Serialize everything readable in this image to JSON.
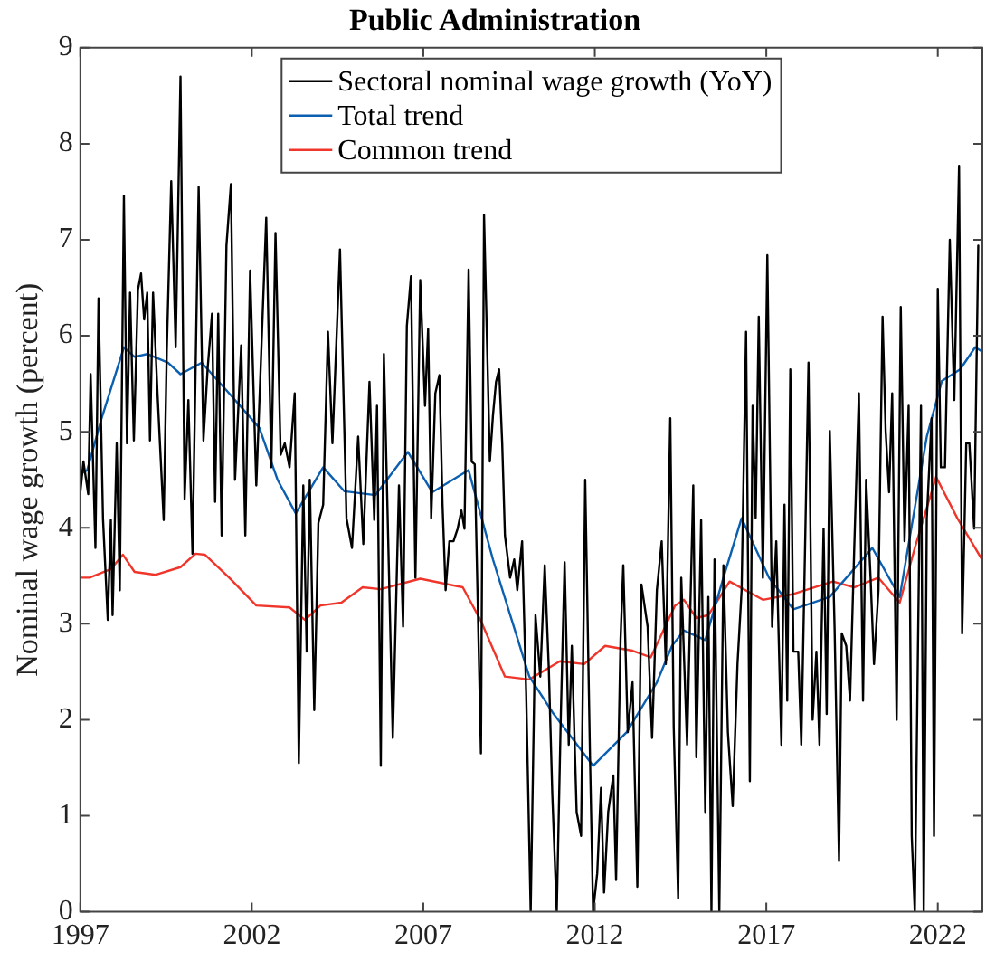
{
  "chart_data": {
    "type": "line",
    "title": "Public Administration",
    "ylabel": "Nominal wage growth (percent)",
    "xlim": [
      1997,
      2023.3
    ],
    "xticks": [
      1997,
      2002,
      2007,
      2012,
      2017,
      2022
    ],
    "ylim": [
      0,
      9
    ],
    "yticks": [
      0,
      1,
      2,
      3,
      4,
      5,
      6,
      7,
      8,
      9
    ],
    "grid": false,
    "legend": "top",
    "marker": "none",
    "line_style": "solid",
    "series": [
      {
        "name": "Sectoral nominal wage growth (YoY)",
        "color": "#000000",
        "x": [
          1997.0,
          1997.09,
          1997.23,
          1997.3,
          1997.44,
          1997.53,
          1997.66,
          1997.8,
          1997.89,
          1997.94,
          1998.06,
          1998.15,
          1998.27,
          1998.36,
          1998.45,
          1998.56,
          1998.68,
          1998.77,
          1998.86,
          1998.95,
          1999.03,
          1999.12,
          1999.25,
          1999.43,
          1999.52,
          1999.65,
          1999.78,
          1999.92,
          2000.04,
          2000.15,
          2000.27,
          2000.45,
          2000.59,
          2000.71,
          2000.84,
          2000.93,
          2001.02,
          2001.12,
          2001.26,
          2001.39,
          2001.51,
          2001.69,
          2001.81,
          2001.95,
          2002.13,
          2002.42,
          2002.57,
          2002.69,
          2002.84,
          2002.96,
          2003.1,
          2003.25,
          2003.37,
          2003.5,
          2003.6,
          2003.69,
          2003.82,
          2003.94,
          2004.08,
          2004.22,
          2004.35,
          2004.57,
          2004.76,
          2004.92,
          2005.1,
          2005.25,
          2005.43,
          2005.57,
          2005.65,
          2005.76,
          2005.85,
          2006.11,
          2006.29,
          2006.41,
          2006.52,
          2006.64,
          2006.77,
          2006.91,
          2007.05,
          2007.14,
          2007.23,
          2007.35,
          2007.47,
          2007.56,
          2007.65,
          2007.76,
          2007.88,
          2008.0,
          2008.11,
          2008.2,
          2008.32,
          2008.41,
          2008.5,
          2008.68,
          2008.77,
          2008.94,
          2009.03,
          2009.12,
          2009.21,
          2009.3,
          2009.38,
          2009.53,
          2009.65,
          2009.74,
          2009.88,
          2010.0,
          2010.13,
          2010.27,
          2010.41,
          2010.54,
          2010.66,
          2010.76,
          2010.89,
          2011.01,
          2011.12,
          2011.24,
          2011.33,
          2011.47,
          2011.6,
          2011.72,
          2011.86,
          2011.95,
          2012.07,
          2012.18,
          2012.27,
          2012.39,
          2012.54,
          2012.62,
          2012.75,
          2012.83,
          2012.96,
          2013.1,
          2013.24,
          2013.36,
          2013.54,
          2013.67,
          2013.81,
          2013.95,
          2014.07,
          2014.2,
          2014.3,
          2014.43,
          2014.52,
          2014.69,
          2014.87,
          2014.96,
          2015.1,
          2015.22,
          2015.31,
          2015.4,
          2015.49,
          2015.63,
          2015.75,
          2015.88,
          2016.02,
          2016.16,
          2016.28,
          2016.41,
          2016.52,
          2016.6,
          2016.69,
          2016.78,
          2016.9,
          2017.03,
          2017.17,
          2017.29,
          2017.44,
          2017.53,
          2017.61,
          2017.7,
          2017.79,
          2017.93,
          2018.02,
          2018.14,
          2018.23,
          2018.35,
          2018.46,
          2018.55,
          2018.67,
          2018.76,
          2018.85,
          2018.99,
          2019.12,
          2019.2,
          2019.33,
          2019.44,
          2019.56,
          2019.7,
          2019.82,
          2019.91,
          2020.04,
          2020.14,
          2020.27,
          2020.39,
          2020.48,
          2020.58,
          2020.67,
          2020.8,
          2020.92,
          2021.03,
          2021.15,
          2021.24,
          2021.33,
          2021.42,
          2021.51,
          2021.59,
          2021.68,
          2021.82,
          2021.89,
          2022.0,
          2022.09,
          2022.21,
          2022.35,
          2022.48,
          2022.62,
          2022.71,
          2022.83,
          2022.92,
          2023.06,
          2023.18
        ],
        "values": [
          4.37,
          4.69,
          4.35,
          5.6,
          3.79,
          6.39,
          4.1,
          3.04,
          4.08,
          3.09,
          4.88,
          3.35,
          7.46,
          4.88,
          6.45,
          4.91,
          6.48,
          6.65,
          6.17,
          6.45,
          4.91,
          6.45,
          5.4,
          4.08,
          5.84,
          7.61,
          5.88,
          8.7,
          4.3,
          5.33,
          3.73,
          7.55,
          4.91,
          5.65,
          6.23,
          4.27,
          6.23,
          3.92,
          6.94,
          7.58,
          4.5,
          5.9,
          3.92,
          6.68,
          4.44,
          7.23,
          4.63,
          7.07,
          4.76,
          4.88,
          4.63,
          5.4,
          1.55,
          4.44,
          2.71,
          4.5,
          2.1,
          4.05,
          4.24,
          6.04,
          4.88,
          6.9,
          4.1,
          3.79,
          4.95,
          3.83,
          5.52,
          4.08,
          5.27,
          1.52,
          5.81,
          1.81,
          4.44,
          2.97,
          6.1,
          6.62,
          3.48,
          6.58,
          5.27,
          6.07,
          4.1,
          5.4,
          5.59,
          4.24,
          3.35,
          3.86,
          3.86,
          3.99,
          4.18,
          3.99,
          6.69,
          4.69,
          4.66,
          1.65,
          7.26,
          4.69,
          5.17,
          5.52,
          5.65,
          4.88,
          3.92,
          3.48,
          3.67,
          3.35,
          3.86,
          2.26,
          0,
          3.09,
          2.45,
          3.61,
          2.52,
          1.23,
          0,
          2.06,
          3.64,
          1.74,
          2.77,
          1.04,
          0.79,
          4.5,
          1.61,
          0,
          0.4,
          1.29,
          0.2,
          1.04,
          1.42,
          0.33,
          2.83,
          3.61,
          1.87,
          2.39,
          0.26,
          3.41,
          2.97,
          1.81,
          3.35,
          3.86,
          2.58,
          5.14,
          1.93,
          0.14,
          3.48,
          1.74,
          4.44,
          1.61,
          4.08,
          1.04,
          3.28,
          0,
          3.67,
          0,
          3.61,
          1.87,
          1.1,
          2.58,
          3.35,
          6.04,
          1.36,
          5.27,
          4.1,
          6.2,
          3.48,
          6.84,
          2.97,
          3.86,
          1.74,
          4.24,
          2.2,
          5.65,
          2.71,
          2.71,
          1.74,
          3.99,
          5.72,
          2.0,
          2.71,
          1.74,
          3.99,
          2.06,
          5.01,
          2.97,
          0.53,
          2.9,
          2.77,
          2.2,
          3.74,
          5.4,
          2.2,
          4.5,
          3.48,
          2.58,
          3.35,
          6.2,
          5.01,
          4.37,
          5.4,
          2.0,
          6.3,
          3.86,
          5.27,
          0.79,
          0,
          2.71,
          5.27,
          0,
          4.1,
          5.14,
          0.79,
          6.49,
          4.63,
          4.63,
          7.0,
          5.33,
          7.77,
          2.9,
          4.88,
          4.88,
          3.99,
          6.94
        ]
      },
      {
        "name": "Total trend",
        "color": "#0b5fb0",
        "x": [
          1997.0,
          1997.2,
          1997.62,
          1998.27,
          1998.58,
          1998.95,
          1999.56,
          1999.92,
          2000.54,
          2001.34,
          2002.22,
          2002.75,
          2003.28,
          2004.08,
          2004.7,
          2005.6,
          2006.55,
          2007.26,
          2008.32,
          2009.03,
          2010.09,
          2010.8,
          2011.95,
          2012.93,
          2013.81,
          2014.25,
          2014.6,
          2015.22,
          2015.75,
          2016.28,
          2017.08,
          2017.79,
          2018.85,
          2020.09,
          2020.89,
          2021.68,
          2022.12,
          2022.65,
          2023.09,
          2023.27
        ],
        "values": [
          4.56,
          4.6,
          5.14,
          5.88,
          5.78,
          5.81,
          5.72,
          5.6,
          5.72,
          5.4,
          5.04,
          4.5,
          4.15,
          4.63,
          4.38,
          4.34,
          4.79,
          4.37,
          4.6,
          3.67,
          2.45,
          2.06,
          1.52,
          1.87,
          2.39,
          2.77,
          2.93,
          2.83,
          3.48,
          4.1,
          3.48,
          3.15,
          3.28,
          3.79,
          3.28,
          4.95,
          5.53,
          5.65,
          5.88,
          5.84
        ]
      },
      {
        "name": "Common trend",
        "color": "#f0352b",
        "x": [
          1997.0,
          1997.27,
          1997.89,
          1998.24,
          1998.58,
          1999.2,
          1999.92,
          2000.36,
          2000.63,
          2001.34,
          2002.13,
          2003.1,
          2003.55,
          2004.0,
          2004.61,
          2005.23,
          2005.76,
          2006.91,
          2008.15,
          2008.68,
          2009.38,
          2010.09,
          2010.98,
          2011.69,
          2012.3,
          2013.1,
          2013.63,
          2014.34,
          2014.6,
          2014.96,
          2015.31,
          2015.93,
          2016.9,
          2017.79,
          2018.94,
          2019.56,
          2020.27,
          2020.89,
          2021.33,
          2021.95,
          2022.57,
          2023.27
        ],
        "values": [
          3.48,
          3.48,
          3.57,
          3.72,
          3.54,
          3.51,
          3.59,
          3.73,
          3.72,
          3.48,
          3.19,
          3.17,
          3.04,
          3.19,
          3.22,
          3.38,
          3.36,
          3.47,
          3.38,
          3.03,
          2.45,
          2.42,
          2.61,
          2.58,
          2.77,
          2.72,
          2.65,
          3.19,
          3.25,
          3.06,
          3.09,
          3.44,
          3.25,
          3.31,
          3.44,
          3.38,
          3.48,
          3.22,
          3.79,
          4.53,
          4.1,
          3.68
        ]
      }
    ]
  }
}
